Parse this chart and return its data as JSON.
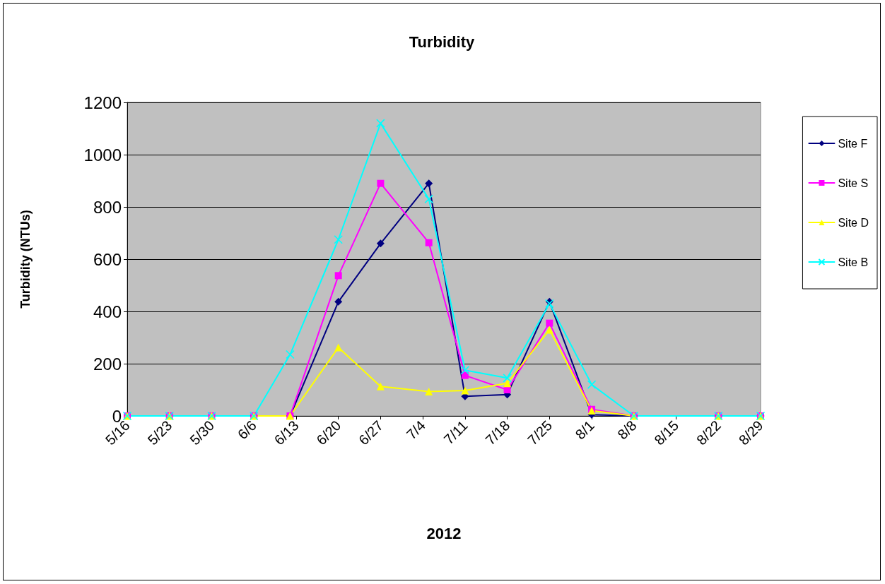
{
  "chart_data": {
    "type": "line",
    "title": "Turbidity",
    "xlabel": "2012",
    "ylabel": "Turbidity (NTUs)",
    "x": [
      "--05-16",
      "--05-23",
      "--05-30",
      "--06-06",
      "--06-12",
      "--06-20",
      "--06-27",
      "--07-05",
      "--07-11",
      "--07-18",
      "--07-25",
      "--08-01",
      "--08-08",
      "--08-22",
      "--08-29"
    ],
    "series": [
      {
        "name": "Site F",
        "color": "#000080",
        "marker": "diamond",
        "values": [
          null,
          null,
          null,
          0,
          0,
          437,
          660,
          890,
          75,
          82,
          437,
          5,
          0,
          0,
          0
        ]
      },
      {
        "name": "Site S",
        "color": "#ff00ff",
        "marker": "square",
        "values": [
          0,
          0,
          0,
          0,
          0,
          537,
          890,
          663,
          155,
          100,
          355,
          25,
          0,
          0,
          0
        ]
      },
      {
        "name": "Site D",
        "color": "#ffff00",
        "marker": "triangle",
        "values": [
          0,
          0,
          0,
          0,
          0,
          262,
          113,
          93,
          97,
          125,
          330,
          20,
          0,
          0,
          0
        ]
      },
      {
        "name": "Site B",
        "color": "#00ffff",
        "marker": "cross",
        "values": [
          0,
          0,
          0,
          0,
          235,
          675,
          1120,
          830,
          175,
          145,
          430,
          120,
          0,
          0,
          0
        ]
      }
    ],
    "xlim": [
      "--05-16",
      "--08-29"
    ],
    "xticks": [
      {
        "value": "--05-16",
        "label": "5/16"
      },
      {
        "value": "--05-23",
        "label": "5/23"
      },
      {
        "value": "--05-30",
        "label": "5/30"
      },
      {
        "value": "--06-06",
        "label": "6/6"
      },
      {
        "value": "--06-13",
        "label": "6/13"
      },
      {
        "value": "--06-20",
        "label": "6/20"
      },
      {
        "value": "--06-27",
        "label": "6/27"
      },
      {
        "value": "--07-04",
        "label": "7/4"
      },
      {
        "value": "--07-11",
        "label": "7/11"
      },
      {
        "value": "--07-18",
        "label": "7/18"
      },
      {
        "value": "--07-25",
        "label": "7/25"
      },
      {
        "value": "--08-01",
        "label": "8/1"
      },
      {
        "value": "--08-08",
        "label": "8/8"
      },
      {
        "value": "--08-15",
        "label": "8/15"
      },
      {
        "value": "--08-22",
        "label": "8/22"
      },
      {
        "value": "--08-29",
        "label": "8/29"
      }
    ],
    "ylim": [
      0,
      1200
    ],
    "yticks": [
      0,
      200,
      400,
      600,
      800,
      1000,
      1200
    ],
    "grid": "y",
    "legend": "right",
    "line_style": "solid"
  }
}
